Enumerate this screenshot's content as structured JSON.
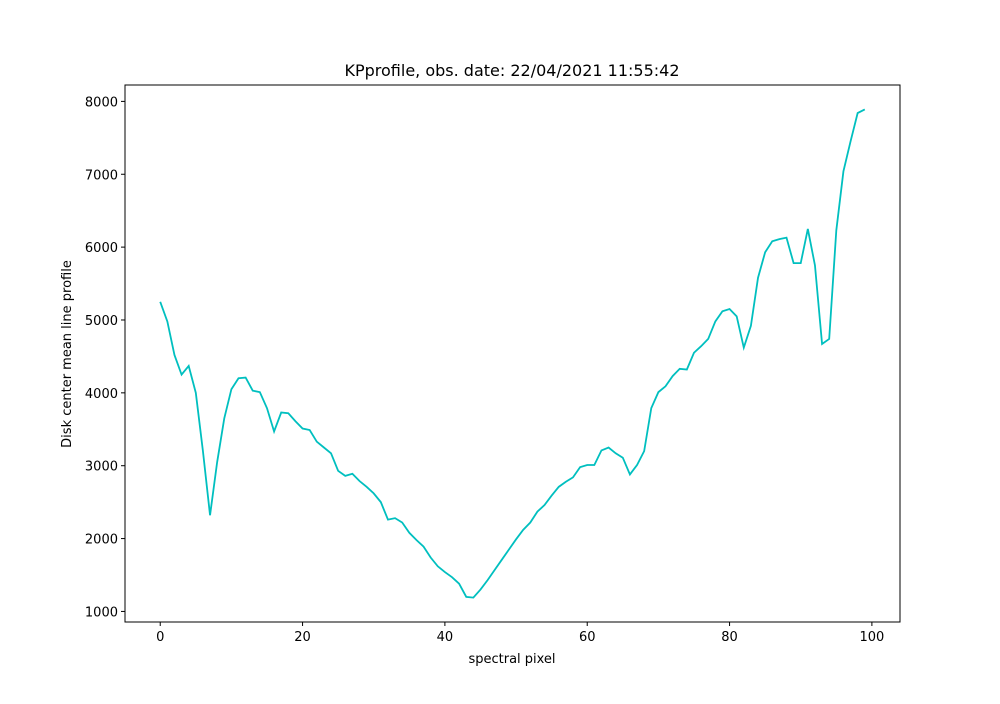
{
  "chart_data": {
    "type": "line",
    "title": "KPprofile, obs. date: 22/04/2021 11:55:42",
    "xlabel": "spectral pixel",
    "ylabel": "Disk center mean line profile",
    "x": [
      0,
      1,
      2,
      3,
      4,
      5,
      6,
      7,
      8,
      9,
      10,
      11,
      12,
      13,
      14,
      15,
      16,
      17,
      18,
      19,
      20,
      21,
      22,
      23,
      24,
      25,
      26,
      27,
      28,
      29,
      30,
      31,
      32,
      33,
      34,
      35,
      36,
      37,
      38,
      39,
      40,
      41,
      42,
      43,
      44,
      45,
      46,
      47,
      48,
      49,
      50,
      51,
      52,
      53,
      54,
      55,
      56,
      57,
      58,
      59,
      60,
      61,
      62,
      63,
      64,
      65,
      66,
      67,
      68,
      69,
      70,
      71,
      72,
      73,
      74,
      75,
      76,
      77,
      78,
      79,
      80,
      81,
      82,
      83,
      84,
      85,
      86,
      87,
      88,
      89,
      90,
      91,
      92,
      93,
      94,
      95,
      96,
      97,
      98,
      99
    ],
    "values": [
      5250,
      4980,
      4520,
      4250,
      4370,
      4000,
      3200,
      2320,
      3050,
      3650,
      4050,
      4200,
      4210,
      4030,
      4010,
      3790,
      3470,
      3730,
      3720,
      3610,
      3510,
      3490,
      3330,
      3250,
      3170,
      2930,
      2860,
      2890,
      2790,
      2710,
      2620,
      2500,
      2260,
      2280,
      2220,
      2080,
      1980,
      1890,
      1740,
      1620,
      1540,
      1470,
      1380,
      1200,
      1190,
      1300,
      1430,
      1570,
      1710,
      1850,
      1990,
      2120,
      2220,
      2370,
      2460,
      2590,
      2710,
      2780,
      2840,
      2980,
      3010,
      3010,
      3210,
      3250,
      3170,
      3110,
      2880,
      3010,
      3200,
      3790,
      4010,
      4090,
      4230,
      4330,
      4320,
      4550,
      4640,
      4740,
      4980,
      5120,
      5150,
      5050,
      4620,
      4920,
      5580,
      5930,
      6080,
      6110,
      6130,
      5780,
      5780,
      6250,
      5750,
      4670,
      4740,
      6230,
      7040,
      7450,
      7840,
      7890
    ],
    "color": "#00bfbf",
    "xlim": [
      -4.95,
      103.95
    ],
    "xticks": [
      0,
      20,
      40,
      60,
      80,
      100
    ],
    "ylim": [
      855,
      8225
    ],
    "yticks": [
      1000,
      2000,
      3000,
      4000,
      5000,
      6000,
      7000,
      8000
    ]
  }
}
